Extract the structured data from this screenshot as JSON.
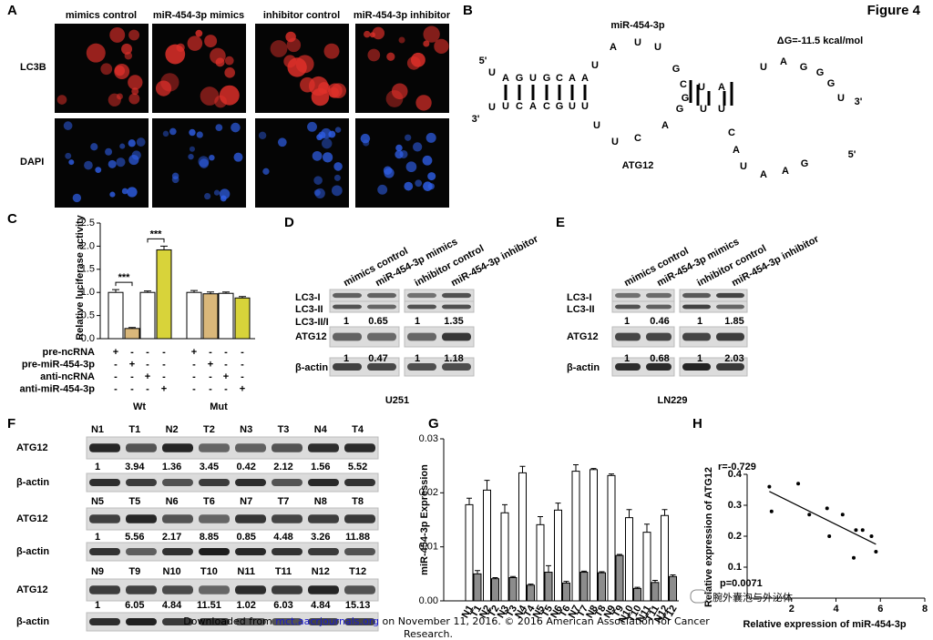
{
  "figure_label": "Figure 4",
  "panel_a": {
    "label": "A",
    "columns": [
      "mimics control",
      "miR-454-3p mimics",
      "inhibitor control",
      "miR-454-3p inhibitor"
    ],
    "rows": [
      "LC3B",
      "DAPI"
    ]
  },
  "panel_b": {
    "label": "B",
    "mirna": "miR-454-3p",
    "delta_g": "ΔG=-11.5 kcal/mol",
    "target": "ATG12",
    "five_prime": "5'",
    "three_prime": "3'",
    "mirna_seq": [
      "U",
      "A",
      "G",
      "U",
      "G",
      "C",
      "A",
      "A",
      "U",
      "A",
      "U",
      "U",
      "G",
      "C",
      "U",
      "A",
      "U",
      "A",
      "G",
      "G",
      "G",
      "U"
    ],
    "target_seq": [
      "U",
      "U",
      "C",
      "A",
      "C",
      "G",
      "U",
      "U",
      "U",
      "U",
      "C",
      "A",
      "G",
      "G",
      "U",
      "U",
      "C",
      "A",
      "U",
      "A",
      "A",
      "G"
    ]
  },
  "chart_data": [
    {
      "type": "bar",
      "label": "C",
      "ylabel": "Relative luciferase activity",
      "ylim": [
        0,
        2.5
      ],
      "yticks": [
        {
          "value": 0,
          "label": "0.0"
        },
        {
          "value": 0.5,
          "label": "0.5"
        },
        {
          "value": 1,
          "label": "1.0"
        },
        {
          "value": 1.5,
          "label": "1.5"
        },
        {
          "value": 2,
          "label": "2.0"
        },
        {
          "value": 2.5,
          "label": "2.5"
        }
      ],
      "values": [
        1.0,
        0.22,
        1.0,
        1.92,
        1.0,
        0.97,
        0.98,
        0.88
      ],
      "errors": [
        0.06,
        0.02,
        0.03,
        0.08,
        0.04,
        0.04,
        0.03,
        0.03
      ],
      "colors": [
        "#ffffff",
        "#d9b77a",
        "#ffffff",
        "#d8d33a",
        "#ffffff",
        "#d9b77a",
        "#ffffff",
        "#d8d33a"
      ],
      "groups": [
        "Wt",
        "Mut"
      ],
      "significance": [
        "***",
        "***"
      ],
      "conditions": [
        {
          "name": "pre-ncRNA",
          "marks": [
            "+",
            "-",
            "-",
            "-",
            "+",
            "-",
            "-",
            "-"
          ]
        },
        {
          "name": "pre-miR-454-3p",
          "marks": [
            "-",
            "+",
            "-",
            "-",
            "-",
            "+",
            "-",
            "-"
          ]
        },
        {
          "name": "anti-ncRNA",
          "marks": [
            "-",
            "-",
            "+",
            "-",
            "-",
            "-",
            "+",
            "-"
          ]
        },
        {
          "name": "anti-miR-454-3p",
          "marks": [
            "-",
            "-",
            "-",
            "+",
            "-",
            "-",
            "-",
            "+"
          ]
        }
      ]
    },
    {
      "type": "bar",
      "label": "G",
      "ylabel": "miR-454-3p Expression",
      "ylim": [
        0,
        0.03
      ],
      "yticks": [
        {
          "value": 0,
          "label": "0.00"
        },
        {
          "value": 0.01,
          "label": "0.01"
        },
        {
          "value": 0.02,
          "label": "0.02"
        },
        {
          "value": 0.03,
          "label": "0.03"
        }
      ],
      "series": [
        {
          "color": "#ffffff",
          "labels": [
            "N1",
            "N2",
            "N3",
            "N4",
            "N5",
            "N6",
            "N7",
            "N8",
            "N9",
            "N10",
            "N11",
            "N12"
          ],
          "values": [
            0.0178,
            0.0205,
            0.0163,
            0.0237,
            0.0141,
            0.0168,
            0.024,
            0.0243,
            0.0232,
            0.0154,
            0.0127,
            0.0158
          ],
          "errors": [
            0.0012,
            0.0018,
            0.0015,
            0.0012,
            0.0015,
            0.0013,
            0.0012,
            0.0002,
            0.0003,
            0.0015,
            0.0015,
            0.0011
          ]
        },
        {
          "color": "#8c8c8c",
          "labels": [
            "T1",
            "T2",
            "T3",
            "T4",
            "T5",
            "T6",
            "T7",
            "T8",
            "T9",
            "T10",
            "T11",
            "T12"
          ],
          "values": [
            0.005,
            0.0041,
            0.0043,
            0.0029,
            0.0053,
            0.0033,
            0.0053,
            0.0052,
            0.0084,
            0.0023,
            0.0034,
            0.0045
          ],
          "errors": [
            0.0006,
            0.0002,
            0.0002,
            0.0002,
            0.0012,
            0.0003,
            0.0002,
            0.0002,
            0.0002,
            0.0002,
            0.0004,
            0.0003
          ]
        }
      ]
    },
    {
      "type": "scatter",
      "label": "H",
      "xlabel": "Relative expression of miR-454-3p",
      "ylabel": "Relative expression of ATG12",
      "r_text": "r=-0.729",
      "p_text": "p=0.0071",
      "xlim": [
        0,
        8
      ],
      "xticks": [
        2,
        4,
        6,
        8
      ],
      "ylim": [
        0,
        0.4
      ],
      "yticks": [
        0.1,
        0.2,
        0.3,
        0.4
      ],
      "x": [
        1.0,
        1.1,
        2.3,
        2.8,
        3.6,
        3.7,
        4.3,
        4.8,
        4.9,
        5.2,
        5.6,
        5.8
      ],
      "y": [
        0.36,
        0.28,
        0.37,
        0.27,
        0.29,
        0.2,
        0.27,
        0.13,
        0.22,
        0.22,
        0.2,
        0.15
      ],
      "color": "#000000"
    }
  ],
  "panel_d": {
    "label": "D",
    "columns": [
      "mimics control",
      "miR-454-3p mimics",
      "inhibitor control",
      "miR-454-3p inhibitor"
    ],
    "lc3_i": "LC3-I",
    "lc3_ii": "LC3-II",
    "ratio_label": "LC3-II/I",
    "lc3_ratio": [
      1,
      0.65,
      1,
      1.35
    ],
    "atg12": "ATG12",
    "atg12_ratio": [
      1,
      0.47,
      1,
      1.18
    ],
    "actin": "β-actin",
    "cell_line": "U251"
  },
  "panel_e": {
    "label": "E",
    "columns": [
      "mimics control",
      "miR-454-3p mimics",
      "inhibitor control",
      "miR-454-3p inhibitor"
    ],
    "lc3_i": "LC3-I",
    "lc3_ii": "LC3-II",
    "lc3_ratio": [
      1,
      0.46,
      1,
      1.85
    ],
    "atg12": "ATG12",
    "atg12_ratio": [
      1,
      0.68,
      1,
      2.03
    ],
    "actin": "β-actin",
    "cell_line": "LN229"
  },
  "panel_f": {
    "label": "F",
    "atg12": "ATG12",
    "actin": "β-actin",
    "groups": [
      {
        "samples": [
          "N1",
          "T1",
          "N2",
          "T2",
          "N3",
          "T3",
          "N4",
          "T4"
        ],
        "ratios": [
          1,
          3.94,
          1.36,
          3.45,
          0.42,
          2.12,
          1.56,
          5.52
        ]
      },
      {
        "samples": [
          "N5",
          "T5",
          "N6",
          "T6",
          "N7",
          "T7",
          "N8",
          "T8"
        ],
        "ratios": [
          1,
          5.56,
          2.17,
          8.85,
          0.85,
          4.48,
          3.26,
          11.88
        ]
      },
      {
        "samples": [
          "N9",
          "T9",
          "N10",
          "T10",
          "N11",
          "T11",
          "N12",
          "T12"
        ],
        "ratios": [
          1,
          6.05,
          4.84,
          11.51,
          1.02,
          6.03,
          4.84,
          15.13
        ]
      }
    ]
  },
  "footer": {
    "prefix": "Downloaded from ",
    "link": "mct.aacrjournals.org",
    "suffix": " on November 11, 2016. © 2016 American Association for Cancer",
    "line2": "Research."
  },
  "watermark": "腕外囊泡与外泌体"
}
